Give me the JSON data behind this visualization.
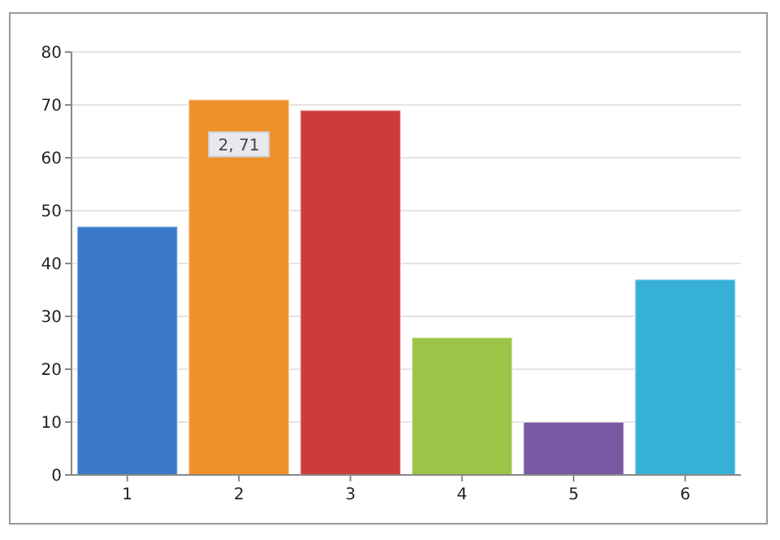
{
  "chart_data": {
    "type": "bar",
    "categories": [
      "1",
      "2",
      "3",
      "4",
      "5",
      "6"
    ],
    "values": [
      47,
      71,
      69,
      26,
      10,
      37
    ],
    "colors": [
      "#3b7acb",
      "#f0902a",
      "#cc3d3a",
      "#9bc448",
      "#7a57a3",
      "#36b0d6"
    ],
    "ylim": [
      0,
      80
    ],
    "yticks": [
      0,
      10,
      20,
      30,
      40,
      50,
      60,
      70,
      80
    ],
    "grid": "y",
    "annotations": [
      {
        "text": "2, 71",
        "x": "2",
        "y": 71
      }
    ]
  }
}
